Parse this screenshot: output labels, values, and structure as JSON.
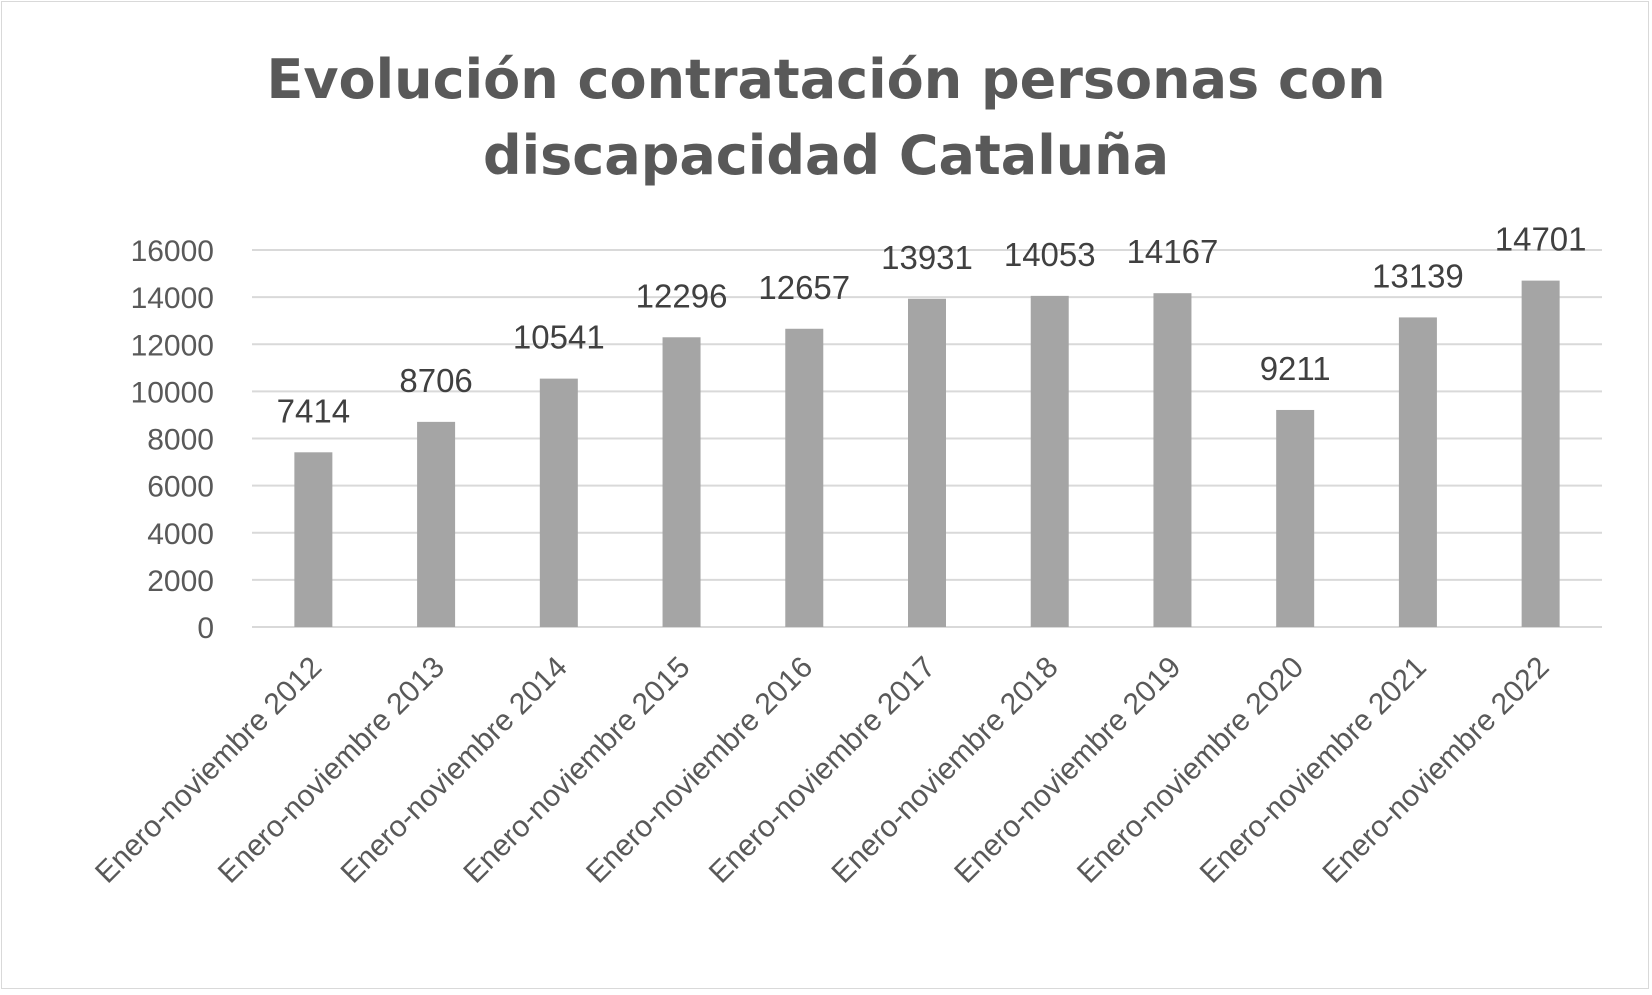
{
  "chart_data": {
    "type": "bar",
    "title_lines": [
      "Evolución contratación personas con",
      "discapacidad Cataluña"
    ],
    "categories": [
      "Enero-noviembre 2012",
      "Enero-noviembre 2013",
      "Enero-noviembre 2014",
      "Enero-noviembre 2015",
      "Enero-noviembre 2016",
      "Enero-noviembre 2017",
      "Enero-noviembre 2018",
      "Enero-noviembre 2019",
      "Enero-noviembre 2020",
      "Enero-noviembre 2021",
      "Enero-noviembre 2022"
    ],
    "values": [
      7414,
      8706,
      10541,
      12296,
      12657,
      13931,
      14053,
      14167,
      9211,
      13139,
      14701
    ],
    "ylim": [
      0,
      16000
    ],
    "yticks": [
      0,
      2000,
      4000,
      6000,
      8000,
      10000,
      12000,
      14000,
      16000
    ],
    "xlabel": "",
    "ylabel": "",
    "grid": true,
    "legend": "none",
    "colors": {
      "bar": "#a5a5a5",
      "grid": "#d9d9d9",
      "text": "#595959"
    }
  }
}
